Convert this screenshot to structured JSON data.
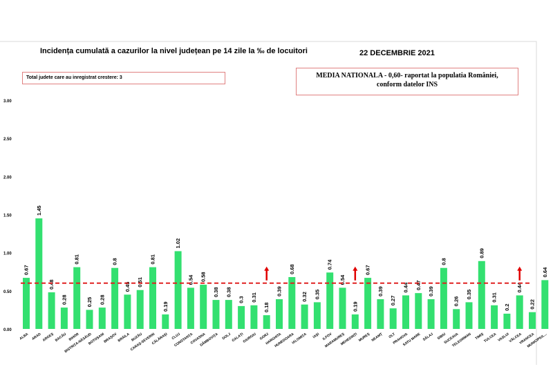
{
  "header": {
    "title": "Incidența cumulată a cazurilor la nivel județean pe 14 zile la ‰ de locuitori",
    "date": "22 DECEMBRIE 2021"
  },
  "info_box": {
    "text": "Total judete care au inregistrat crestere: 3"
  },
  "national_box": {
    "line1": "MEDIA NATIONALA - 0,60-  raportat la populatia României,",
    "line2": "conform datelor INS"
  },
  "chart_data": {
    "type": "bar",
    "categories": [
      "ALBA",
      "ARAD",
      "ARGEȘ",
      "BACĂU",
      "BIHOR",
      "BISTRIȚA-NĂSĂUD",
      "BOTOȘANI",
      "BRAȘOV",
      "BRĂILA",
      "BUZĂU",
      "CARAȘ-SEVERIN",
      "CĂLĂRAȘI",
      "CLUJ",
      "CONSTANȚA",
      "COVASNA",
      "DÂMBOVIȚA",
      "DOLJ",
      "GALAȚI",
      "GIURGIU",
      "GORJ",
      "HARGHITA",
      "HUNEDOARA",
      "IALOMIȚA",
      "IAȘI",
      "ILFOV",
      "MARAMUREȘ",
      "MEHEDINȚI",
      "MUREȘ",
      "NEAMȚ",
      "OLT",
      "PRAHOVA",
      "SATU MARE",
      "SĂLAJ",
      "SIBIU",
      "SUCEAVA",
      "TELEORMAN",
      "TIMIȘ",
      "TULCEA",
      "VASLUI",
      "VÂLCEA",
      "VRANCEA",
      "MUNICIPIUL..."
    ],
    "values": [
      0.67,
      1.45,
      0.48,
      0.28,
      0.81,
      0.25,
      0.28,
      0.8,
      0.45,
      0.51,
      0.81,
      0.19,
      1.02,
      0.54,
      0.58,
      0.38,
      0.38,
      0.3,
      0.31,
      0.18,
      0.39,
      0.68,
      0.32,
      0.35,
      0.74,
      0.54,
      0.19,
      0.67,
      0.39,
      0.27,
      0.44,
      0.47,
      0.39,
      0.8,
      0.26,
      0.35,
      0.89,
      0.31,
      0.2,
      0.44,
      0.22,
      0.64
    ],
    "value_labels": [
      "0.67",
      "1.45",
      "0.48",
      "0.28",
      "0.81",
      "0.25",
      "0.28",
      "0.8",
      "0.45",
      "0.51",
      "0.81",
      "0.19",
      "1.02",
      "0.54",
      "0.58",
      "0.38",
      "0.38",
      "0.3",
      "0.31",
      "0.18",
      "0.39",
      "0.68",
      "0.32",
      "0.35",
      "0.74",
      "0.54",
      "0.19",
      "0.67",
      "0.39",
      "0.27",
      "0.44",
      "0.47",
      "0.39",
      "0.8",
      "0.26",
      "0.35",
      "0.89",
      "0.31",
      "0.2",
      "0.44",
      "0.22",
      "0.64"
    ],
    "ylim": [
      0,
      3
    ],
    "yticks": [
      "0.00",
      "0.50",
      "1.00",
      "1.50",
      "2.00",
      "2.50",
      "3.00"
    ],
    "reference_line": {
      "value": 0.6,
      "color": "#e02020",
      "style": "dashed"
    },
    "markers": [
      {
        "category": "GORJ",
        "direction": "up"
      },
      {
        "category": "MEHEDINȚI",
        "direction": "up"
      },
      {
        "category": "VÂLCEA",
        "direction": "up"
      }
    ],
    "bar_color": "#33e070",
    "grid": false,
    "xlabel": "",
    "ylabel": ""
  }
}
